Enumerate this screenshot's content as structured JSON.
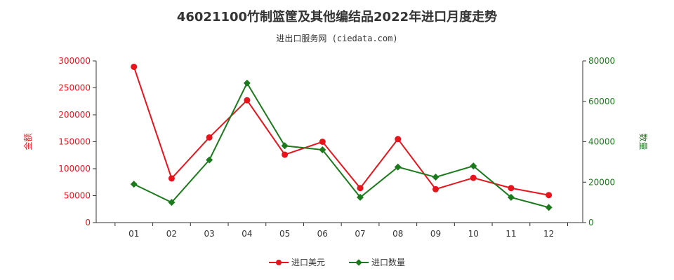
{
  "title": "46021100竹制篮筐及其他编结品2022年进口月度走势",
  "subtitle": "进出口服务网 (ciedata.com)",
  "chart_data": {
    "type": "line",
    "categories": [
      "01",
      "02",
      "03",
      "04",
      "05",
      "06",
      "07",
      "08",
      "09",
      "10",
      "11",
      "12"
    ],
    "y_left": {
      "label": "金额",
      "range": [
        0,
        300000
      ],
      "ticks": [
        "0",
        "50000",
        "100000",
        "150000",
        "200000",
        "250000",
        "300000"
      ],
      "color": "#e8141c"
    },
    "y_right": {
      "label": "数量",
      "range": [
        0,
        80000
      ],
      "ticks": [
        "0",
        "20000",
        "40000",
        "60000",
        "80000"
      ],
      "color": "#1b7a1b"
    },
    "series": [
      {
        "name": "进口美元",
        "axis": "left",
        "color": "#e8141c",
        "marker": "circle",
        "values": [
          289000,
          82000,
          158000,
          227000,
          126000,
          150000,
          64000,
          155000,
          62000,
          83000,
          64000,
          51000
        ]
      },
      {
        "name": "进口数量",
        "axis": "right",
        "color": "#1b7a1b",
        "marker": "diamond",
        "values": [
          19000,
          10000,
          31000,
          69000,
          38000,
          36000,
          12500,
          27500,
          22500,
          28000,
          12500,
          7500
        ]
      }
    ],
    "grid": false,
    "legend": "bottom"
  }
}
